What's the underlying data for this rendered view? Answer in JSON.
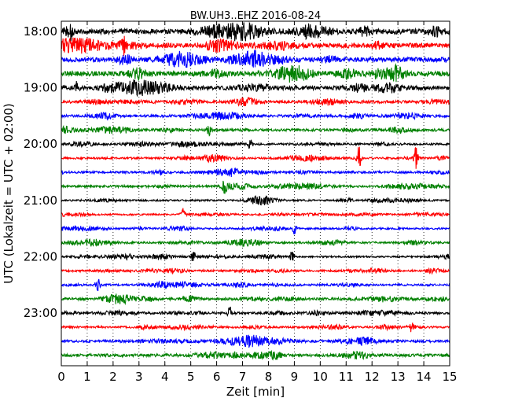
{
  "chart_data": {
    "type": "line",
    "title": "BW.UH3..EHZ 2016-08-24",
    "xlabel": "Zeit  [min]",
    "ylabel": "UTC (Lokalzeit = UTC + 02:00)",
    "xlim": [
      0,
      15
    ],
    "x_ticks": [
      "0",
      "1",
      "2",
      "3",
      "4",
      "5",
      "6",
      "7",
      "8",
      "9",
      "10",
      "11",
      "12",
      "13",
      "14",
      "15"
    ],
    "y_ticks": [
      {
        "label": "18:00",
        "row": 0
      },
      {
        "label": "19:00",
        "row": 4
      },
      {
        "label": "20:00",
        "row": 8
      },
      {
        "label": "21:00",
        "row": 12
      },
      {
        "label": "22:00",
        "row": 16
      },
      {
        "label": "23:00",
        "row": 20
      }
    ],
    "row_minutes": 15,
    "start_time": "18:00",
    "grid": "vertical-dotted",
    "trace_colors": [
      "#000000",
      "#ff0000",
      "#0000ff",
      "#008000"
    ],
    "traces": [
      {
        "start": "18:00",
        "amplitude": 0.9
      },
      {
        "start": "18:15",
        "amplitude": 0.85
      },
      {
        "start": "18:30",
        "amplitude": 0.8
      },
      {
        "start": "18:45",
        "amplitude": 0.9
      },
      {
        "start": "19:00",
        "amplitude": 0.75
      },
      {
        "start": "19:15",
        "amplitude": 0.5
      },
      {
        "start": "19:30",
        "amplitude": 0.45
      },
      {
        "start": "19:45",
        "amplitude": 0.45
      },
      {
        "start": "20:00",
        "amplitude": 0.35
      },
      {
        "start": "20:15",
        "amplitude": 0.35
      },
      {
        "start": "20:30",
        "amplitude": 0.4
      },
      {
        "start": "20:45",
        "amplitude": 0.4
      },
      {
        "start": "21:00",
        "amplitude": 0.3
      },
      {
        "start": "21:15",
        "amplitude": 0.3
      },
      {
        "start": "21:30",
        "amplitude": 0.3
      },
      {
        "start": "21:45",
        "amplitude": 0.35
      },
      {
        "start": "22:00",
        "amplitude": 0.3
      },
      {
        "start": "22:15",
        "amplitude": 0.35
      },
      {
        "start": "22:30",
        "amplitude": 0.35
      },
      {
        "start": "22:45",
        "amplitude": 0.45
      },
      {
        "start": "23:00",
        "amplitude": 0.4
      },
      {
        "start": "23:15",
        "amplitude": 0.35
      },
      {
        "start": "23:30",
        "amplitude": 0.45
      },
      {
        "start": "23:45",
        "amplitude": 0.5
      }
    ],
    "events": [
      {
        "row": 0,
        "minute": 0.4,
        "amplitude": 1.2
      },
      {
        "row": 0,
        "minute": 9.5,
        "amplitude": 1.1
      },
      {
        "row": 1,
        "minute": 2.4,
        "amplitude": 1.0
      },
      {
        "row": 4,
        "minute": 0.6,
        "amplitude": 1.1
      },
      {
        "row": 7,
        "minute": 5.7,
        "amplitude": 1.0
      },
      {
        "row": 8,
        "minute": 7.3,
        "amplitude": 0.9
      },
      {
        "row": 9,
        "minute": 11.5,
        "amplitude": 2.2
      },
      {
        "row": 9,
        "minute": 13.7,
        "amplitude": 1.6
      },
      {
        "row": 11,
        "minute": 6.3,
        "amplitude": 0.9
      },
      {
        "row": 13,
        "minute": 4.7,
        "amplitude": 1.1
      },
      {
        "row": 14,
        "minute": 9.0,
        "amplitude": 0.8
      },
      {
        "row": 16,
        "minute": 5.1,
        "amplitude": 0.9
      },
      {
        "row": 16,
        "minute": 8.9,
        "amplitude": 0.9
      },
      {
        "row": 18,
        "minute": 1.4,
        "amplitude": 1.1
      },
      {
        "row": 20,
        "minute": 6.5,
        "amplitude": 0.9
      },
      {
        "row": 21,
        "minute": 13.5,
        "amplitude": 0.8
      }
    ]
  }
}
